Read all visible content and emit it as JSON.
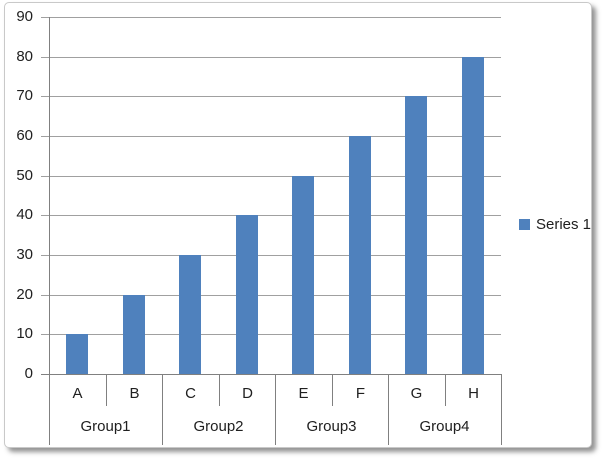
{
  "chart_data": {
    "type": "bar",
    "title": "",
    "categories": [
      "A",
      "B",
      "C",
      "D",
      "E",
      "F",
      "G",
      "H"
    ],
    "groups": [
      {
        "label": "Group1",
        "categories": [
          "A",
          "B"
        ]
      },
      {
        "label": "Group2",
        "categories": [
          "C",
          "D"
        ]
      },
      {
        "label": "Group3",
        "categories": [
          "E",
          "F"
        ]
      },
      {
        "label": "Group4",
        "categories": [
          "G",
          "H"
        ]
      }
    ],
    "series": [
      {
        "name": "Series 1",
        "values": [
          10,
          20,
          30,
          40,
          50,
          60,
          70,
          80
        ]
      }
    ],
    "ylim": [
      0,
      90
    ],
    "yticks": [
      0,
      10,
      20,
      30,
      40,
      50,
      60,
      70,
      80,
      90
    ],
    "grid": true,
    "legend_position": "right",
    "bar_color": "#4F81BD"
  },
  "colors": {
    "bar": "#4F81BD",
    "gridline": "#a0a0a0",
    "axis": "#808080",
    "text": "#202020",
    "frame_border": "#c9c9c9"
  }
}
